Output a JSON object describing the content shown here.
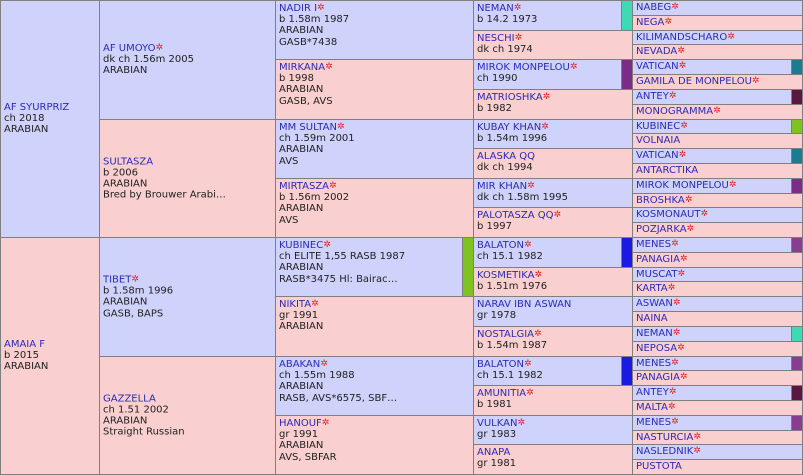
{
  "colors": {
    "male_bg": "#cfd2fa",
    "female_bg": "#f9cfcf",
    "name_link": "#2b2bb6",
    "star": "#e02424"
  },
  "pedigree": {
    "g1": [
      {
        "name": "AF SYURPRIZ",
        "star": false,
        "lines": [
          "ch 2018",
          "ARABIAN"
        ],
        "sex": "m"
      },
      {
        "name": "AMAIA F",
        "star": false,
        "lines": [
          "b 2015",
          "ARABIAN"
        ],
        "sex": "f"
      }
    ],
    "g2": [
      {
        "name": "AF UMOYO",
        "star": true,
        "lines": [
          "dk ch 1.56m 2005",
          "ARABIAN"
        ],
        "sex": "m"
      },
      {
        "name": "SULTASZA",
        "star": false,
        "lines": [
          "b 2006",
          "ARABIAN",
          "Bred by Brouwer Arabi…"
        ],
        "sex": "f"
      },
      {
        "name": "TIBET",
        "star": true,
        "lines": [
          "b 1.58m 1996",
          "ARABIAN",
          "GASB, BAPS"
        ],
        "sex": "m"
      },
      {
        "name": "GAZZELLA",
        "star": false,
        "lines": [
          "ch 1.51 2002",
          "ARABIAN",
          "Straight Russian"
        ],
        "sex": "f"
      }
    ],
    "g3": [
      {
        "name": "NADIR I",
        "star": true,
        "lines": [
          "b 1.58m 1987",
          "ARABIAN",
          "GASB*7438"
        ],
        "sex": "m"
      },
      {
        "name": "MIRKANA",
        "star": true,
        "lines": [
          "b 1998",
          "ARABIAN",
          "GASB, AVS"
        ],
        "sex": "f"
      },
      {
        "name": "MM SULTAN",
        "star": true,
        "lines": [
          "ch 1.59m 2001",
          "ARABIAN",
          "AVS"
        ],
        "sex": "m"
      },
      {
        "name": "MIRTASZA",
        "star": true,
        "lines": [
          "b 1.56m 2002",
          "ARABIAN",
          "AVS"
        ],
        "sex": "f"
      },
      {
        "name": "KUBINEC",
        "star": true,
        "lines": [
          "ch ELITE 1,55 RASB 1987",
          "ARABIAN",
          "RASB*3475 Hl: Bairac…"
        ],
        "sex": "m",
        "bar": "#7ec321"
      },
      {
        "name": "NIKITA",
        "star": true,
        "lines": [
          "gr 1991",
          "ARABIAN"
        ],
        "sex": "f"
      },
      {
        "name": "ABAKAN",
        "star": true,
        "lines": [
          "ch 1.55m 1988",
          "ARABIAN",
          "RASB, AVS*6575, SBF…"
        ],
        "sex": "m"
      },
      {
        "name": "HANOUF",
        "star": true,
        "lines": [
          "gr 1991",
          "ARABIAN",
          "AVS, SBFAR"
        ],
        "sex": "f"
      }
    ],
    "g4": [
      {
        "name": "NEMAN",
        "star": true,
        "lines": [
          "b 14.2 1973"
        ],
        "sex": "m",
        "bar": "#3fd9b4"
      },
      {
        "name": "NESCHI",
        "star": true,
        "lines": [
          "dk ch 1974"
        ],
        "sex": "f"
      },
      {
        "name": "MIROK MONPELOU",
        "star": true,
        "lines": [
          "ch 1990"
        ],
        "sex": "m",
        "bar": "#7b2c86"
      },
      {
        "name": "MATRIOSHKA",
        "star": true,
        "lines": [
          "b 1982"
        ],
        "sex": "f"
      },
      {
        "name": "KUBAY KHAN",
        "star": true,
        "lines": [
          "b 1.54m 1996"
        ],
        "sex": "m"
      },
      {
        "name": "ALASKA QQ",
        "star": false,
        "lines": [
          "dk ch 1994"
        ],
        "sex": "f"
      },
      {
        "name": "MIR KHAN",
        "star": true,
        "lines": [
          "dk ch 1.58m 1995"
        ],
        "sex": "m"
      },
      {
        "name": "PALOTASZA QQ",
        "star": true,
        "lines": [
          "b 1997"
        ],
        "sex": "f"
      },
      {
        "name": "BALATON",
        "star": true,
        "lines": [
          "ch 15.1 1982"
        ],
        "sex": "m",
        "bar": "#1a1ae0"
      },
      {
        "name": "KOSMETIKA",
        "star": true,
        "lines": [
          "b 1.51m 1976"
        ],
        "sex": "f"
      },
      {
        "name": "NARAV IBN ASWAN",
        "star": false,
        "lines": [
          "gr 1978"
        ],
        "sex": "m"
      },
      {
        "name": "NOSTALGIA",
        "star": true,
        "lines": [
          "b 1.54m 1987"
        ],
        "sex": "f"
      },
      {
        "name": "BALATON",
        "star": true,
        "lines": [
          "ch 15.1 1982"
        ],
        "sex": "m",
        "bar": "#1a1ae0"
      },
      {
        "name": "AMUNITIA",
        "star": true,
        "lines": [
          "b 1981"
        ],
        "sex": "f"
      },
      {
        "name": "VULKAN",
        "star": true,
        "lines": [
          "gr 1983"
        ],
        "sex": "m"
      },
      {
        "name": "ANAPA",
        "star": false,
        "lines": [
          "gr 1981"
        ],
        "sex": "f"
      }
    ],
    "g5": [
      {
        "name": "NABEG",
        "star": true,
        "sex": "m"
      },
      {
        "name": "NEGA",
        "star": true,
        "sex": "f"
      },
      {
        "name": "KILIMANDSCHARO",
        "star": true,
        "sex": "m"
      },
      {
        "name": "NEVADA",
        "star": true,
        "sex": "f"
      },
      {
        "name": "VATICAN",
        "star": true,
        "sex": "m",
        "bar": "#1a7d8f"
      },
      {
        "name": "GAMILA DE MONPELOU",
        "star": true,
        "sex": "f"
      },
      {
        "name": "ANTEY",
        "star": true,
        "sex": "m",
        "bar": "#5a1840"
      },
      {
        "name": "MONOGRAMMA",
        "star": true,
        "sex": "f"
      },
      {
        "name": "KUBINEC",
        "star": true,
        "sex": "m",
        "bar": "#7ec321"
      },
      {
        "name": "VOLNAIA",
        "star": false,
        "sex": "f"
      },
      {
        "name": "VATICAN",
        "star": true,
        "sex": "m",
        "bar": "#1a7d8f"
      },
      {
        "name": "ANTARCTIKA",
        "star": false,
        "sex": "f"
      },
      {
        "name": "MIROK MONPELOU",
        "star": true,
        "sex": "m",
        "bar": "#7b2c86"
      },
      {
        "name": "BROSHKA",
        "star": true,
        "sex": "f"
      },
      {
        "name": "KOSMONAUT",
        "star": true,
        "sex": "m"
      },
      {
        "name": "POZJARKA",
        "star": true,
        "sex": "f"
      },
      {
        "name": "MENES",
        "star": true,
        "sex": "m",
        "bar": "#8a3d8f"
      },
      {
        "name": "PANAGIA",
        "star": true,
        "sex": "f"
      },
      {
        "name": "MUSCAT",
        "star": true,
        "sex": "m"
      },
      {
        "name": "KARTA",
        "star": true,
        "sex": "f"
      },
      {
        "name": "ASWAN",
        "star": true,
        "sex": "m"
      },
      {
        "name": "NAINA",
        "star": false,
        "sex": "f"
      },
      {
        "name": "NEMAN",
        "star": true,
        "sex": "m",
        "bar": "#3fd9b4"
      },
      {
        "name": "NEPOSA",
        "star": true,
        "sex": "f"
      },
      {
        "name": "MENES",
        "star": true,
        "sex": "m",
        "bar": "#8a3d8f"
      },
      {
        "name": "PANAGIA",
        "star": true,
        "sex": "f"
      },
      {
        "name": "ANTEY",
        "star": true,
        "sex": "m",
        "bar": "#5a1840"
      },
      {
        "name": "MALTA",
        "star": true,
        "sex": "f"
      },
      {
        "name": "MENES",
        "star": true,
        "sex": "m",
        "bar": "#8a3d8f"
      },
      {
        "name": "NASTURCIA",
        "star": true,
        "sex": "f"
      },
      {
        "name": "NASLEDNIK",
        "star": true,
        "sex": "m"
      },
      {
        "name": "PUSTOTA",
        "star": false,
        "sex": "f"
      }
    ]
  }
}
